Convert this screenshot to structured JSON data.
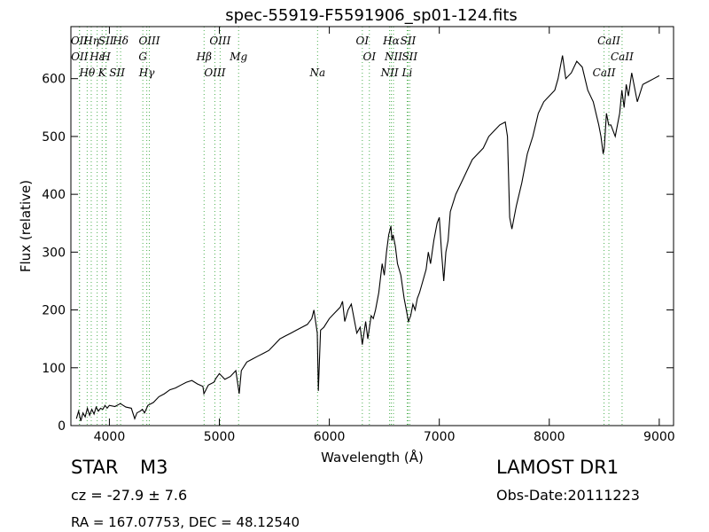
{
  "chart_data": {
    "type": "line",
    "title": "spec-55919-F5591906_sp01-124.fits",
    "xlabel": "Wavelength (Å)",
    "ylabel": "Flux (relative)",
    "xlim": [
      3650,
      9130
    ],
    "ylim": [
      0,
      690
    ],
    "xticks": [
      4000,
      5000,
      6000,
      7000,
      8000,
      9000
    ],
    "yticks": [
      0,
      100,
      200,
      300,
      400,
      500,
      600
    ],
    "grid": false,
    "series": [
      {
        "x": [
          3700,
          3720,
          3740,
          3760,
          3780,
          3800,
          3820,
          3840,
          3860,
          3880,
          3900,
          3920,
          3940,
          3960,
          3980,
          4000,
          4050,
          4100,
          4150,
          4200,
          4230,
          4250,
          4280,
          4300,
          4320,
          4350,
          4400,
          4450,
          4500,
          4550,
          4600,
          4650,
          4700,
          4750,
          4800,
          4850,
          4860,
          4900,
          4950,
          4970,
          5000,
          5050,
          5100,
          5150,
          5180,
          5200,
          5250,
          5300,
          5350,
          5400,
          5450,
          5500,
          5550,
          5600,
          5650,
          5700,
          5750,
          5800,
          5840,
          5860,
          5890,
          5900,
          5920,
          5950,
          6000,
          6050,
          6100,
          6120,
          6140,
          6170,
          6200,
          6250,
          6280,
          6300,
          6330,
          6350,
          6380,
          6400,
          6420,
          6450,
          6480,
          6500,
          6520,
          6540,
          6560,
          6570,
          6580,
          6600,
          6620,
          6650,
          6680,
          6700,
          6720,
          6740,
          6760,
          6780,
          6800,
          6820,
          6850,
          6880,
          6900,
          6920,
          6950,
          6980,
          7000,
          7020,
          7040,
          7060,
          7080,
          7100,
          7150,
          7200,
          7250,
          7300,
          7350,
          7400,
          7450,
          7500,
          7550,
          7600,
          7620,
          7640,
          7660,
          7680,
          7700,
          7750,
          7800,
          7850,
          7900,
          7950,
          8000,
          8050,
          8080,
          8100,
          8120,
          8150,
          8200,
          8250,
          8300,
          8350,
          8400,
          8450,
          8470,
          8490,
          8500,
          8520,
          8540,
          8560,
          8600,
          8620,
          8640,
          8660,
          8680,
          8700,
          8720,
          8750,
          8800,
          8850,
          8900,
          8950,
          9000
        ],
        "y": [
          12,
          25,
          8,
          22,
          15,
          30,
          18,
          28,
          20,
          32,
          25,
          30,
          28,
          35,
          30,
          35,
          33,
          38,
          32,
          30,
          12,
          22,
          25,
          28,
          22,
          35,
          40,
          50,
          55,
          62,
          65,
          70,
          75,
          78,
          72,
          68,
          55,
          70,
          75,
          82,
          90,
          80,
          85,
          95,
          55,
          95,
          110,
          115,
          120,
          125,
          130,
          140,
          150,
          155,
          160,
          165,
          170,
          175,
          185,
          200,
          160,
          60,
          165,
          170,
          185,
          195,
          205,
          215,
          180,
          200,
          210,
          160,
          170,
          140,
          180,
          150,
          190,
          185,
          200,
          230,
          280,
          260,
          300,
          330,
          345,
          320,
          330,
          310,
          280,
          260,
          220,
          200,
          180,
          190,
          210,
          200,
          220,
          230,
          250,
          270,
          300,
          280,
          320,
          350,
          360,
          300,
          250,
          300,
          320,
          370,
          400,
          420,
          440,
          460,
          470,
          480,
          500,
          510,
          520,
          525,
          500,
          360,
          340,
          360,
          380,
          420,
          470,
          500,
          540,
          560,
          570,
          580,
          600,
          620,
          640,
          600,
          610,
          630,
          620,
          580,
          560,
          520,
          500,
          470,
          480,
          540,
          520,
          520,
          500,
          520,
          540,
          580,
          550,
          590,
          570,
          610,
          560,
          590,
          595,
          600,
          605
        ]
      }
    ],
    "line_markers": [
      {
        "label": "OII",
        "wavelength": 3727
      },
      {
        "label": "OII",
        "wavelength": 3729
      },
      {
        "label": "Hθ",
        "wavelength": 3798
      },
      {
        "label": "Hη",
        "wavelength": 3835
      },
      {
        "label": "Hε",
        "wavelength": 3889
      },
      {
        "label": "K",
        "wavelength": 3934
      },
      {
        "label": "SII",
        "wavelength": 3970
      },
      {
        "label": "H",
        "wavelength": 3969
      },
      {
        "label": "SII",
        "wavelength": 4070
      },
      {
        "label": "Hδ",
        "wavelength": 4102
      },
      {
        "label": "G",
        "wavelength": 4304
      },
      {
        "label": "Hγ",
        "wavelength": 4340
      },
      {
        "label": "OIII",
        "wavelength": 4363
      },
      {
        "label": "Hβ",
        "wavelength": 4861
      },
      {
        "label": "OIII",
        "wavelength": 4959
      },
      {
        "label": "OIII",
        "wavelength": 5007
      },
      {
        "label": "Mg",
        "wavelength": 5175
      },
      {
        "label": "Na",
        "wavelength": 5893
      },
      {
        "label": "OI",
        "wavelength": 6300
      },
      {
        "label": "OI",
        "wavelength": 6364
      },
      {
        "label": "NII",
        "wavelength": 6548
      },
      {
        "label": "Hα",
        "wavelength": 6563
      },
      {
        "label": "NII",
        "wavelength": 6583
      },
      {
        "label": "Li",
        "wavelength": 6708
      },
      {
        "label": "SII",
        "wavelength": 6716
      },
      {
        "label": "SII",
        "wavelength": 6731
      },
      {
        "label": "CaII",
        "wavelength": 8498
      },
      {
        "label": "CaII",
        "wavelength": 8542
      },
      {
        "label": "CaII",
        "wavelength": 8662
      }
    ]
  },
  "info": {
    "class_label": "STAR",
    "subclass": "M3",
    "cz": "cz = -27.9 ± 7.6",
    "survey": "LAMOST DR1",
    "obs_date": "Obs-Date:20111223",
    "coords": "RA = 167.07753, DEC = 48.12540"
  }
}
